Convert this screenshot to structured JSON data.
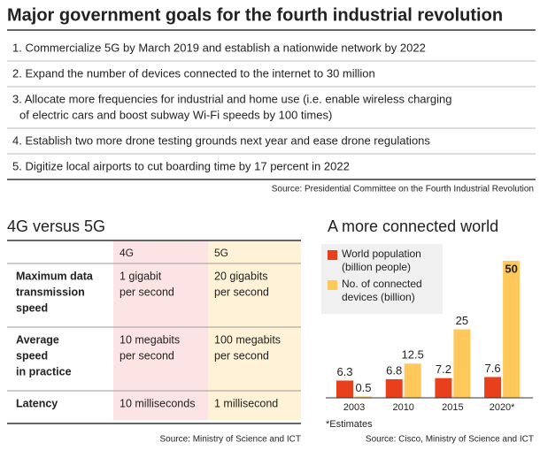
{
  "title": "Major government goals for the fourth industrial revolution",
  "goals": [
    [
      "1. Commercialize 5G by March 2019 and establish a nationwide network by 2022"
    ],
    [
      "2. Expand the number of devices connected to the internet to 30 million"
    ],
    [
      "3. Allocate more frequencies for industrial and home use (i.e. enable wireless charging",
      "of electric cars and boost subway Wi-Fi speeds by 100 times)"
    ],
    [
      "4. Establish two more drone testing grounds next year and ease drone regulations"
    ],
    [
      "5. Digitize local airports to cut boarding time by 17 percent in 2022"
    ]
  ],
  "goals_source": "Source: Presidential Committee on the Fourth Industrial Revolution",
  "table": {
    "title": "4G versus 5G",
    "columns": [
      "4G",
      "5G"
    ],
    "rows": [
      {
        "label": [
          "Maximum data",
          "transmission",
          "speed"
        ],
        "cells": [
          [
            "1 gigabit",
            "per second"
          ],
          [
            "20 gigabits",
            "per second"
          ]
        ]
      },
      {
        "label": [
          "Average",
          "speed",
          "in practice"
        ],
        "cells": [
          [
            "10 megabits",
            "per second"
          ],
          [
            "100 megabits",
            "per second"
          ]
        ]
      },
      {
        "label": [
          "Latency"
        ],
        "cells": [
          [
            "10 milliseconds"
          ],
          [
            "1 millisecond"
          ]
        ]
      }
    ],
    "source": "Source: Ministry of Science and ICT"
  },
  "chart_data": {
    "type": "bar",
    "title": "A more connected world",
    "categories": [
      "2003",
      "2010",
      "2015",
      "2020*"
    ],
    "series": [
      {
        "name": "World population (billion people)",
        "color": "#e8401c",
        "values": [
          6.3,
          6.8,
          7.2,
          7.6
        ]
      },
      {
        "name": "No. of connected devices (billion)",
        "color": "#ffc85a",
        "values": [
          0.5,
          12.5,
          25,
          50
        ]
      }
    ],
    "ylim": [
      0,
      50
    ],
    "note": "*Estimates",
    "source": "Source: Cisco, Ministry of Science and ICT"
  }
}
